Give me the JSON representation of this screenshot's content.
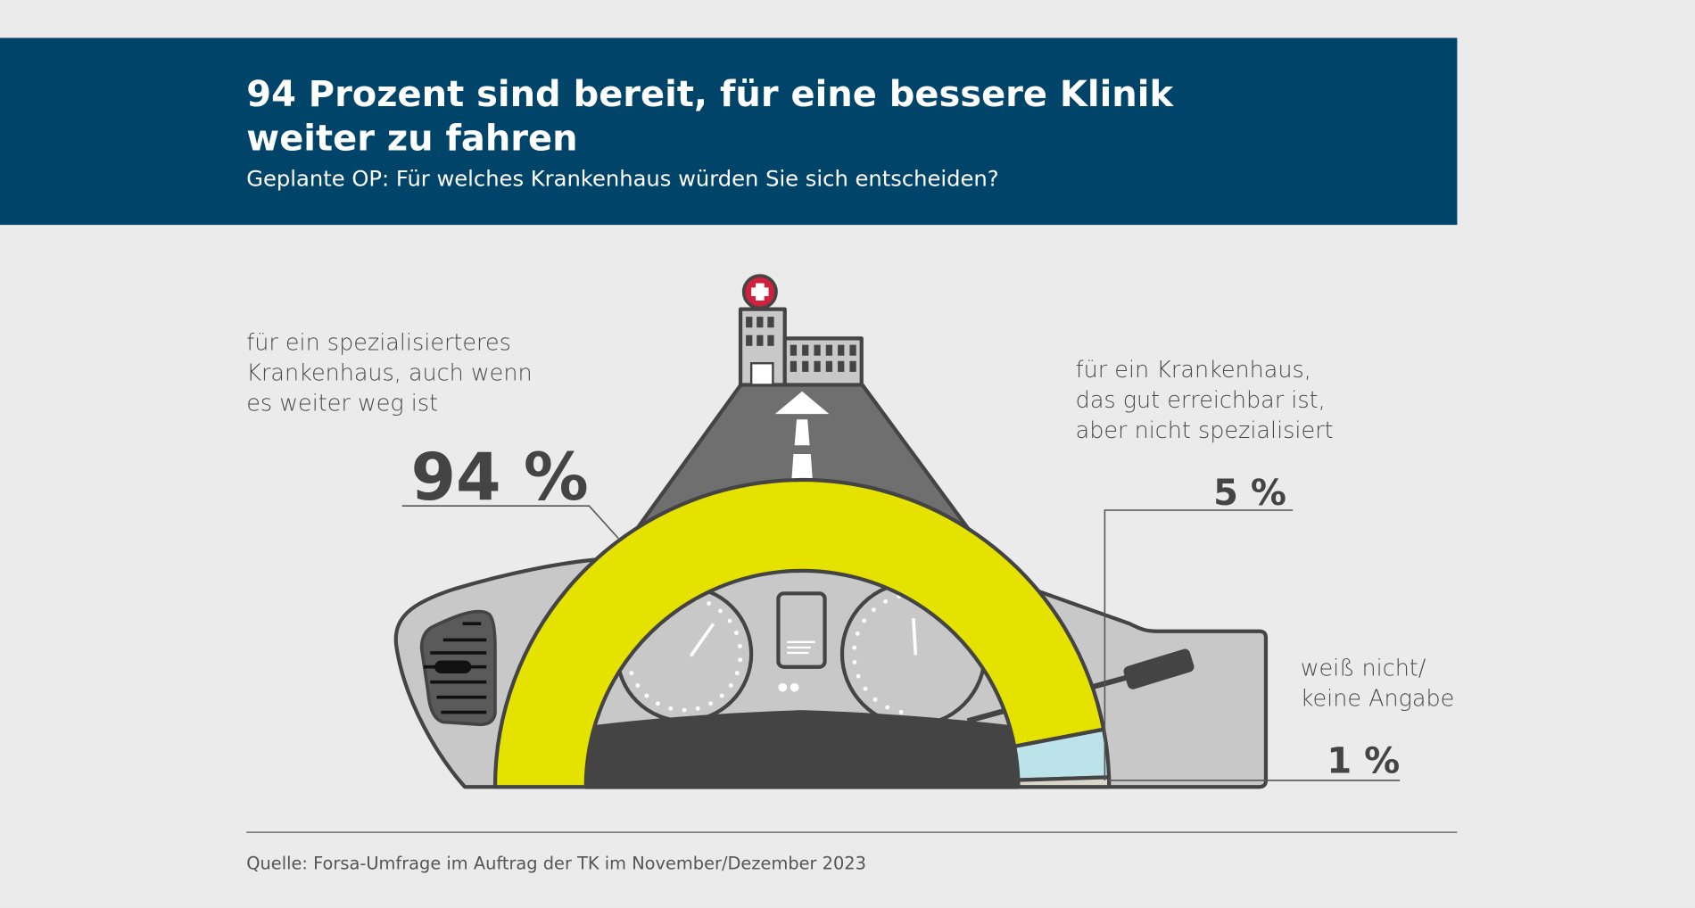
{
  "header": {
    "title_line1": "94 Prozent sind bereit, für eine bessere Klinik",
    "title_line2": "weiter zu fahren",
    "subtitle": "Geplante OP: Für welches Krankenhaus würden Sie sich entscheiden?"
  },
  "colors": {
    "header_bg": "#00446a",
    "specialized": "#e5e200",
    "reachable": "#bde3ea",
    "no_answer": "#d9d6cc"
  },
  "chart_data": {
    "type": "pie",
    "subtype": "semicircle-gauge",
    "title": "94 Prozent sind bereit, für eine bessere Klinik weiter zu fahren",
    "categories": [
      {
        "lines": [
          "für ein spezialisierteres",
          "Krankenhaus, auch wenn",
          "es weiter weg ist"
        ],
        "value": 94,
        "label": "94 %"
      },
      {
        "lines": [
          "für ein Krankenhaus,",
          "das gut erreichbar ist,",
          "aber nicht spezialisiert"
        ],
        "value": 5,
        "label": "5 %"
      },
      {
        "lines": [
          "weiß nicht/",
          "keine Angabe"
        ],
        "value": 1,
        "label": "1 %"
      }
    ],
    "unit": "%"
  },
  "footer": {
    "source": "Quelle: Forsa-Umfrage im Auftrag der TK im November/Dezember 2023"
  }
}
